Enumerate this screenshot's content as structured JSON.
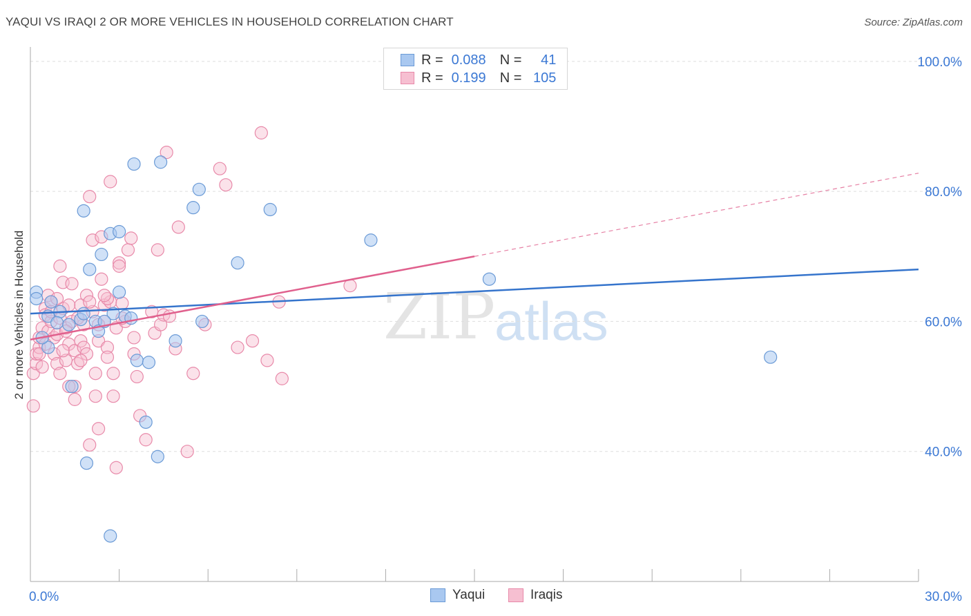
{
  "header": {
    "title": "YAQUI VS IRAQI 2 OR MORE VEHICLES IN HOUSEHOLD CORRELATION CHART",
    "source": "Source: ZipAtlas.com"
  },
  "watermark": {
    "part1": "ZIP",
    "part2": "atlas"
  },
  "colors": {
    "yaqui_fill": "#a9c8f0",
    "yaqui_stroke": "#6a9ad6",
    "yaqui_line": "#3574cc",
    "iraqi_fill": "#f6bfd1",
    "iraqi_stroke": "#e889a9",
    "iraqi_line": "#e0608d",
    "tick_label": "#3b78d4",
    "grid": "#dddddd"
  },
  "legend": {
    "rows": [
      {
        "r_label": "R =",
        "r_value": "0.088",
        "n_label": "N =",
        "n_value": "41"
      },
      {
        "r_label": "R =",
        "r_value": "0.199",
        "n_label": "N =",
        "n_value": "105"
      }
    ]
  },
  "bottom_legend": {
    "yaqui": "Yaqui",
    "iraqis": "Iraqis"
  },
  "chart_data": {
    "type": "scatter",
    "title": "YAQUI VS IRAQI 2 OR MORE VEHICLES IN HOUSEHOLD CORRELATION CHART",
    "xlabel": "",
    "ylabel": "2 or more Vehicles in Household",
    "xlim": [
      0,
      30
    ],
    "ylim": [
      20,
      102
    ],
    "x_tick_labels": [
      {
        "value": 0,
        "label": "0.0%"
      },
      {
        "value": 30,
        "label": "30.0%"
      }
    ],
    "y_tick_labels": [
      {
        "value": 100,
        "label": "100.0%"
      },
      {
        "value": 80,
        "label": "80.0%"
      },
      {
        "value": 60,
        "label": "60.0%"
      },
      {
        "value": 40,
        "label": "40.0%"
      }
    ],
    "y_gridlines": [
      100,
      80,
      60,
      40
    ],
    "grid": true,
    "legend_position": "top-center",
    "series": [
      {
        "name": "Yaqui",
        "R": 0.088,
        "N": 41,
        "trend": {
          "x": [
            0,
            30
          ],
          "y": [
            61.2,
            68.0
          ],
          "style": "solid"
        },
        "points": [
          [
            0.2,
            64.5
          ],
          [
            0.2,
            63.5
          ],
          [
            0.6,
            60.8
          ],
          [
            0.6,
            56.0
          ],
          [
            0.7,
            63.0
          ],
          [
            1.0,
            61.5
          ],
          [
            0.9,
            59.8
          ],
          [
            1.7,
            60.3
          ],
          [
            1.8,
            61.2
          ],
          [
            1.4,
            50.0
          ],
          [
            1.8,
            77.0
          ],
          [
            2.0,
            68.0
          ],
          [
            2.4,
            70.3
          ],
          [
            2.2,
            60.0
          ],
          [
            2.3,
            58.5
          ],
          [
            2.7,
            73.5
          ],
          [
            3.0,
            73.8
          ],
          [
            3.0,
            64.5
          ],
          [
            2.8,
            61.2
          ],
          [
            3.2,
            60.8
          ],
          [
            3.4,
            60.5
          ],
          [
            3.5,
            84.2
          ],
          [
            3.6,
            54.0
          ],
          [
            4.0,
            53.7
          ],
          [
            4.4,
            84.5
          ],
          [
            3.9,
            44.5
          ],
          [
            4.3,
            39.2
          ],
          [
            4.9,
            57.0
          ],
          [
            5.5,
            77.5
          ],
          [
            5.7,
            80.3
          ],
          [
            5.8,
            60.0
          ],
          [
            7.0,
            69.0
          ],
          [
            8.1,
            77.2
          ],
          [
            11.5,
            72.5
          ],
          [
            15.5,
            66.5
          ],
          [
            25.0,
            54.5
          ],
          [
            1.9,
            38.2
          ],
          [
            2.7,
            27.0
          ],
          [
            0.4,
            57.5
          ],
          [
            1.3,
            59.5
          ],
          [
            2.5,
            60.0
          ]
        ]
      },
      {
        "name": "Iraqis",
        "R": 0.199,
        "N": 105,
        "trend": {
          "x": [
            0,
            15
          ],
          "y": [
            57.2,
            70.0
          ],
          "style": "solid",
          "extension": {
            "x": [
              15,
              30
            ],
            "y": [
              70.0,
              82.8
            ],
            "style": "dashed"
          }
        },
        "points": [
          [
            0.1,
            47.0
          ],
          [
            0.1,
            52.0
          ],
          [
            0.2,
            53.5
          ],
          [
            0.2,
            55.0
          ],
          [
            0.3,
            56.0
          ],
          [
            0.3,
            57.5
          ],
          [
            0.4,
            59.0
          ],
          [
            0.4,
            53.0
          ],
          [
            0.5,
            62.0
          ],
          [
            0.5,
            61.0
          ],
          [
            0.6,
            64.0
          ],
          [
            0.6,
            58.5
          ],
          [
            0.7,
            63.0
          ],
          [
            0.7,
            60.0
          ],
          [
            0.8,
            57.5
          ],
          [
            0.8,
            55.0
          ],
          [
            0.9,
            53.5
          ],
          [
            0.9,
            58.0
          ],
          [
            1.0,
            52.0
          ],
          [
            1.0,
            60.5
          ],
          [
            1.0,
            68.5
          ],
          [
            1.1,
            66.0
          ],
          [
            1.1,
            62.0
          ],
          [
            1.2,
            54.0
          ],
          [
            1.2,
            59.0
          ],
          [
            1.3,
            62.5
          ],
          [
            1.3,
            56.5
          ],
          [
            1.4,
            65.8
          ],
          [
            1.4,
            60.0
          ],
          [
            1.5,
            55.5
          ],
          [
            1.5,
            50.0
          ],
          [
            1.5,
            48.0
          ],
          [
            1.6,
            53.5
          ],
          [
            1.7,
            57.0
          ],
          [
            1.7,
            62.5
          ],
          [
            1.8,
            59.5
          ],
          [
            1.8,
            56.0
          ],
          [
            1.9,
            64.0
          ],
          [
            1.9,
            55.0
          ],
          [
            2.0,
            79.2
          ],
          [
            2.0,
            41.0
          ],
          [
            2.1,
            72.5
          ],
          [
            2.1,
            61.5
          ],
          [
            2.2,
            52.0
          ],
          [
            2.2,
            48.5
          ],
          [
            2.3,
            43.5
          ],
          [
            2.3,
            57.0
          ],
          [
            2.4,
            73.0
          ],
          [
            2.4,
            66.5
          ],
          [
            2.5,
            62.5
          ],
          [
            2.5,
            60.0
          ],
          [
            2.6,
            56.0
          ],
          [
            2.6,
            54.5
          ],
          [
            2.7,
            81.5
          ],
          [
            2.7,
            63.0
          ],
          [
            2.8,
            52.0
          ],
          [
            2.8,
            48.5
          ],
          [
            2.9,
            37.5
          ],
          [
            2.9,
            59.0
          ],
          [
            3.0,
            69.0
          ],
          [
            3.0,
            68.5
          ],
          [
            3.1,
            62.8
          ],
          [
            3.2,
            60.0
          ],
          [
            3.3,
            71.0
          ],
          [
            3.4,
            72.8
          ],
          [
            3.5,
            57.5
          ],
          [
            3.5,
            55.0
          ],
          [
            3.6,
            51.5
          ],
          [
            3.7,
            45.5
          ],
          [
            3.9,
            41.8
          ],
          [
            4.1,
            61.5
          ],
          [
            4.2,
            58.2
          ],
          [
            4.3,
            71.0
          ],
          [
            4.4,
            59.5
          ],
          [
            4.5,
            61.0
          ],
          [
            4.6,
            86.0
          ],
          [
            4.7,
            60.8
          ],
          [
            4.9,
            55.8
          ],
          [
            5.0,
            74.5
          ],
          [
            5.5,
            52.0
          ],
          [
            5.3,
            40.0
          ],
          [
            5.9,
            59.5
          ],
          [
            6.4,
            83.5
          ],
          [
            6.6,
            81.0
          ],
          [
            7.0,
            56.0
          ],
          [
            7.5,
            57.0
          ],
          [
            7.8,
            89.0
          ],
          [
            8.0,
            54.0
          ],
          [
            8.4,
            63.0
          ],
          [
            8.5,
            51.2
          ],
          [
            10.8,
            65.5
          ],
          [
            1.6,
            60.5
          ],
          [
            2.0,
            63.0
          ],
          [
            1.2,
            58.5
          ],
          [
            0.9,
            63.5
          ],
          [
            0.5,
            56.5
          ],
          [
            1.1,
            55.5
          ],
          [
            1.3,
            50.0
          ],
          [
            2.3,
            59.5
          ],
          [
            2.6,
            63.5
          ],
          [
            3.1,
            60.5
          ],
          [
            0.3,
            55.0
          ],
          [
            0.7,
            61.5
          ],
          [
            1.7,
            54.0
          ],
          [
            2.5,
            64.0
          ]
        ]
      }
    ]
  }
}
